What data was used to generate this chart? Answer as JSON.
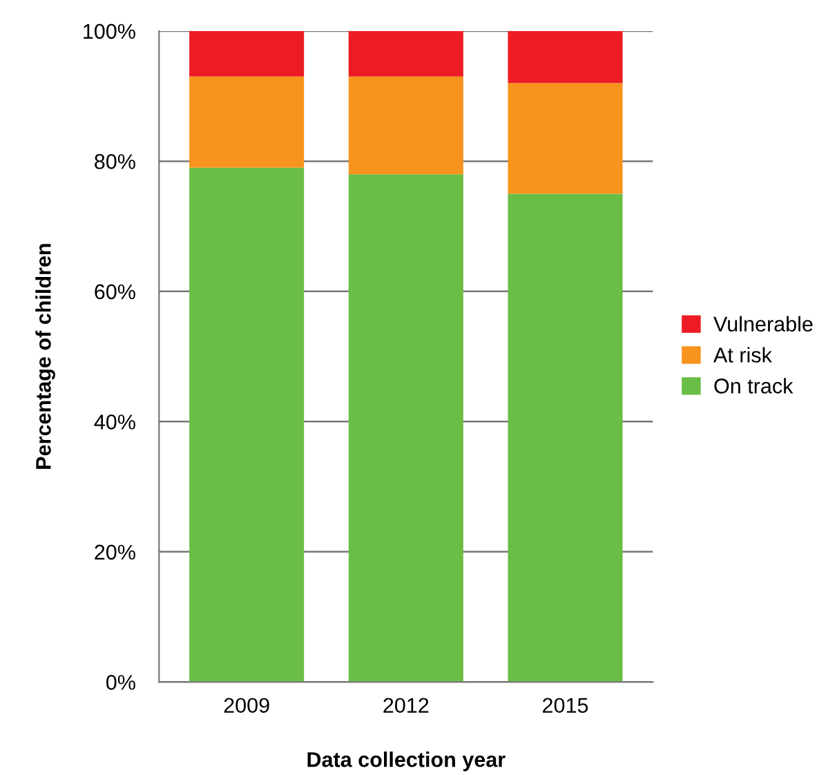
{
  "chart_data": {
    "type": "bar",
    "stacked": true,
    "xlabel": "Data collection year",
    "ylabel": "Percentage of children",
    "categories": [
      "2009",
      "2012",
      "2015"
    ],
    "series": [
      {
        "name": "On track",
        "color": "#6abd45",
        "values": [
          79,
          78,
          75
        ]
      },
      {
        "name": "At risk",
        "color": "#f7941d",
        "values": [
          14,
          15,
          17
        ]
      },
      {
        "name": "Vulnerable",
        "color": "#ed1c24",
        "values": [
          7,
          7,
          8
        ]
      }
    ],
    "ylim": [
      0,
      100
    ],
    "yticks": [
      {
        "value": 0,
        "label": "0%"
      },
      {
        "value": 20,
        "label": "20%"
      },
      {
        "value": 40,
        "label": "40%"
      },
      {
        "value": 60,
        "label": "60%"
      },
      {
        "value": 80,
        "label": "80%"
      },
      {
        "value": 100,
        "label": "100%"
      }
    ],
    "grid": "y",
    "legend": "right"
  }
}
